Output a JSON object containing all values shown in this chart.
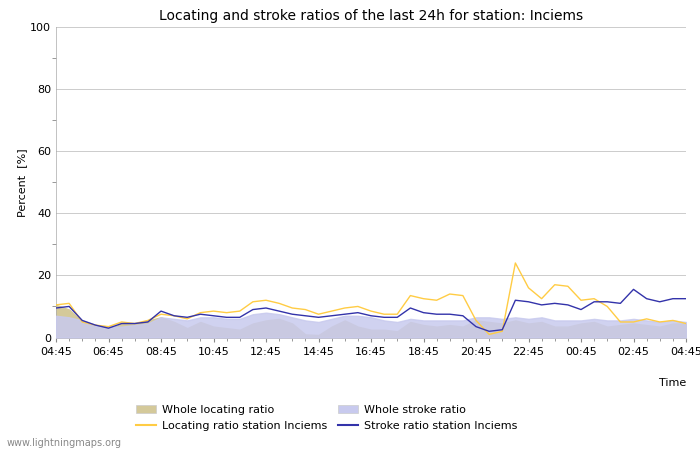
{
  "title": "Locating and stroke ratios of the last 24h for station: Inciems",
  "xlabel": "Time",
  "ylabel": "Percent  [%]",
  "watermark": "www.lightningmaps.org",
  "ylim": [
    0,
    100
  ],
  "yticks": [
    0,
    20,
    40,
    60,
    80,
    100
  ],
  "x_labels": [
    "04:45",
    "06:45",
    "08:45",
    "10:45",
    "12:45",
    "14:45",
    "16:45",
    "18:45",
    "20:45",
    "22:45",
    "00:45",
    "02:45",
    "04:45"
  ],
  "whole_locating": [
    10.5,
    9.0,
    5.0,
    3.5,
    2.5,
    4.5,
    4.5,
    5.5,
    6.5,
    5.0,
    3.0,
    5.0,
    3.5,
    3.0,
    2.5,
    4.5,
    5.5,
    6.0,
    4.5,
    1.0,
    0.8,
    3.5,
    5.5,
    3.5,
    2.5,
    2.5,
    2.0,
    5.0,
    4.0,
    3.5,
    4.0,
    3.5,
    5.5,
    5.0,
    4.5,
    5.5,
    4.5,
    5.0,
    3.5,
    3.5,
    4.5,
    5.0,
    3.5,
    4.0,
    4.5,
    4.0,
    3.5,
    4.5,
    4.5
  ],
  "whole_stroke": [
    7.0,
    6.5,
    5.5,
    4.0,
    3.5,
    3.5,
    4.0,
    4.5,
    6.5,
    6.0,
    5.5,
    6.5,
    6.5,
    6.0,
    6.0,
    7.5,
    8.0,
    7.5,
    6.5,
    5.5,
    5.0,
    6.0,
    7.0,
    7.0,
    6.5,
    5.5,
    5.0,
    6.0,
    5.5,
    5.5,
    5.5,
    5.5,
    6.5,
    6.5,
    6.0,
    6.5,
    6.0,
    6.5,
    5.5,
    5.5,
    5.5,
    6.0,
    5.5,
    5.5,
    6.0,
    5.5,
    5.0,
    5.5,
    5.0
  ],
  "locating_station": [
    10.5,
    11.0,
    5.0,
    4.0,
    3.5,
    5.0,
    4.5,
    5.5,
    7.5,
    7.0,
    6.0,
    8.0,
    8.5,
    8.0,
    8.5,
    11.5,
    12.0,
    11.0,
    9.5,
    9.0,
    7.5,
    8.5,
    9.5,
    10.0,
    8.5,
    7.5,
    7.5,
    13.5,
    12.5,
    12.0,
    14.0,
    13.5,
    5.5,
    1.0,
    2.0,
    24.0,
    16.0,
    12.5,
    17.0,
    16.5,
    12.0,
    12.5,
    10.0,
    5.0,
    5.0,
    6.0,
    5.0,
    5.5,
    4.5
  ],
  "stroke_station": [
    9.5,
    10.0,
    5.5,
    4.0,
    3.0,
    4.5,
    4.5,
    5.0,
    8.5,
    7.0,
    6.5,
    7.5,
    7.0,
    6.5,
    6.5,
    9.0,
    9.5,
    8.5,
    7.5,
    7.0,
    6.5,
    7.0,
    7.5,
    8.0,
    7.0,
    6.5,
    6.5,
    9.5,
    8.0,
    7.5,
    7.5,
    7.0,
    3.5,
    2.0,
    2.5,
    12.0,
    11.5,
    10.5,
    11.0,
    10.5,
    9.0,
    11.5,
    11.5,
    11.0,
    15.5,
    12.5,
    11.5,
    12.5,
    12.5
  ],
  "whole_locating_color": "#d4c99a",
  "whole_stroke_color": "#c8caee",
  "locating_station_color": "#ffcc44",
  "stroke_station_color": "#3333aa",
  "bg_color": "#ffffff",
  "plot_bg_color": "#ffffff",
  "grid_color": "#cccccc",
  "title_fontsize": 10,
  "axis_fontsize": 8,
  "tick_fontsize": 8
}
